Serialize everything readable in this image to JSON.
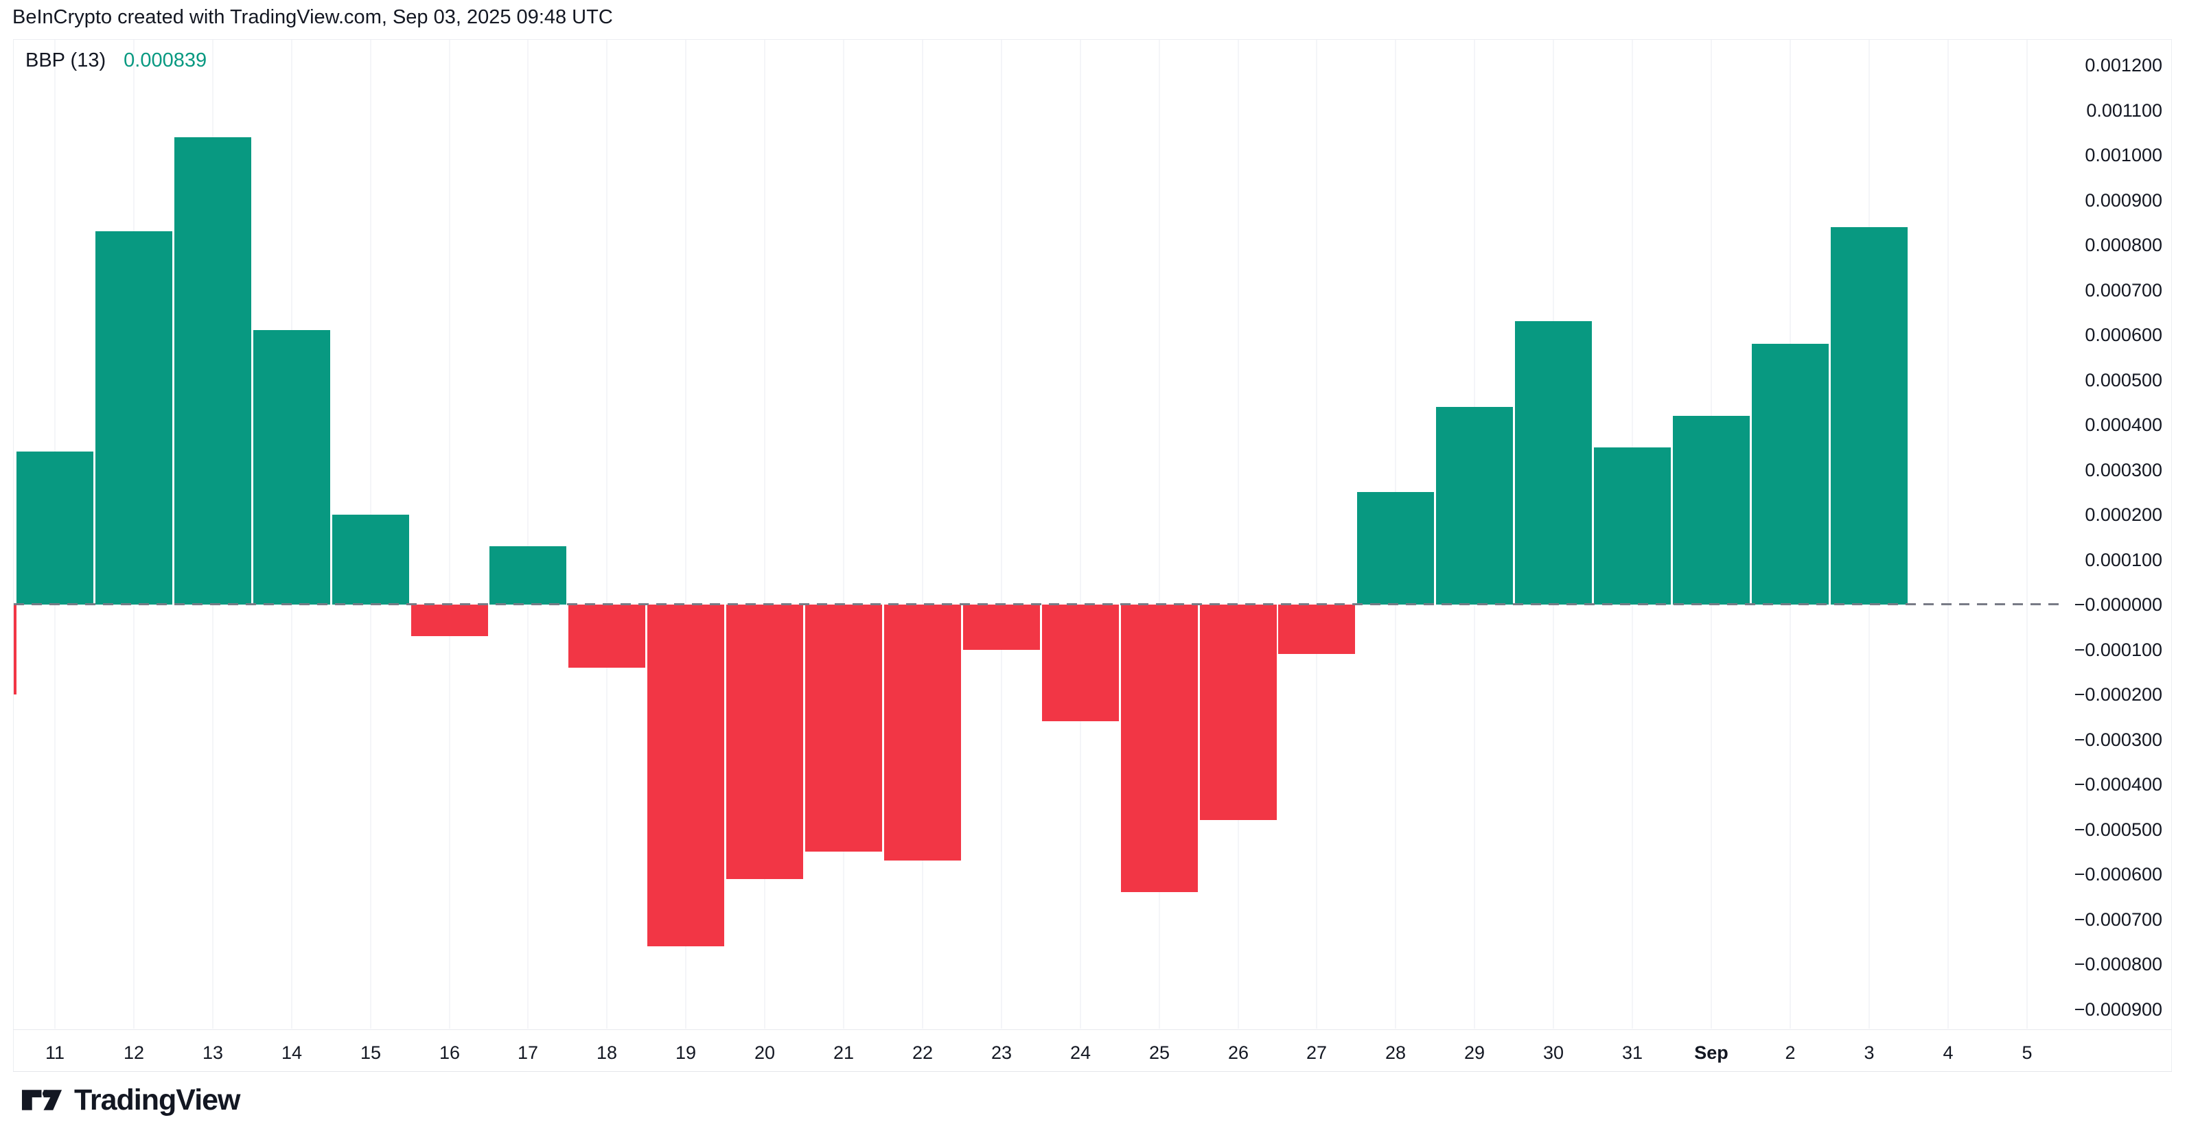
{
  "header": {
    "attribution": "BeInCrypto created with TradingView.com, Sep 03, 2025 09:48 UTC"
  },
  "legend": {
    "indicator": "BBP (13)",
    "value": "0.000839"
  },
  "footer": {
    "brand": "TradingView",
    "logo_icon": "tradingview-logo-icon"
  },
  "colors": {
    "positive": "#089981",
    "negative": "#F23645",
    "text": "#131722",
    "legend_value": "#089981",
    "zero_line": "#787B86",
    "gridline": "#F4F5F8",
    "border": "#E7E9EE",
    "background": "#FFFFFF"
  },
  "chart_data": {
    "type": "bar",
    "title": "BBP (13)",
    "subtitle": "Bull Bear Power histogram, daily values Aug 11 - Sep 3",
    "categories": [
      "11",
      "12",
      "13",
      "14",
      "15",
      "16",
      "17",
      "18",
      "19",
      "20",
      "21",
      "22",
      "23",
      "24",
      "25",
      "26",
      "27",
      "28",
      "29",
      "30",
      "31",
      "Sep",
      "2",
      "3",
      "4",
      "5"
    ],
    "values": [
      0.00034,
      0.00083,
      0.00104,
      0.00061,
      0.0002,
      -7e-05,
      0.00013,
      -0.00014,
      -0.00076,
      -0.00061,
      -0.00055,
      -0.00057,
      -0.0001,
      -0.00026,
      -0.00064,
      -0.00048,
      -0.00011,
      0.00025,
      0.00044,
      0.00063,
      0.00035,
      0.00042,
      0.00058,
      0.000839,
      null,
      null
    ],
    "last_value": 0.000839,
    "left_clipped_bar_value": -0.0002,
    "xlabel": "",
    "ylabel": "",
    "ylim": [
      -0.00095,
      0.00125
    ],
    "grid": "vertical-faint",
    "zero_line_style": "dashed",
    "legend_position": "top-left",
    "bold_category": "Sep",
    "y_ticks": [
      {
        "label": "0.001200",
        "value": 0.0012
      },
      {
        "label": "0.001100",
        "value": 0.0011
      },
      {
        "label": "0.001000",
        "value": 0.001
      },
      {
        "label": "0.000900",
        "value": 0.0009
      },
      {
        "label": "0.000800",
        "value": 0.0008
      },
      {
        "label": "0.000700",
        "value": 0.0007
      },
      {
        "label": "0.000600",
        "value": 0.0006
      },
      {
        "label": "0.000500",
        "value": 0.0005
      },
      {
        "label": "0.000400",
        "value": 0.0004
      },
      {
        "label": "0.000300",
        "value": 0.0003
      },
      {
        "label": "0.000200",
        "value": 0.0002
      },
      {
        "label": "0.000100",
        "value": 0.0001
      },
      {
        "label": "−0.000000",
        "value": 0.0
      },
      {
        "label": "−0.000100",
        "value": -0.0001
      },
      {
        "label": "−0.000200",
        "value": -0.0002
      },
      {
        "label": "−0.000300",
        "value": -0.0003
      },
      {
        "label": "−0.000400",
        "value": -0.0004
      },
      {
        "label": "−0.000500",
        "value": -0.0005
      },
      {
        "label": "−0.000600",
        "value": -0.0006
      },
      {
        "label": "−0.000700",
        "value": -0.0007
      },
      {
        "label": "−0.000800",
        "value": -0.0008
      },
      {
        "label": "−0.000900",
        "value": -0.0009
      }
    ]
  }
}
